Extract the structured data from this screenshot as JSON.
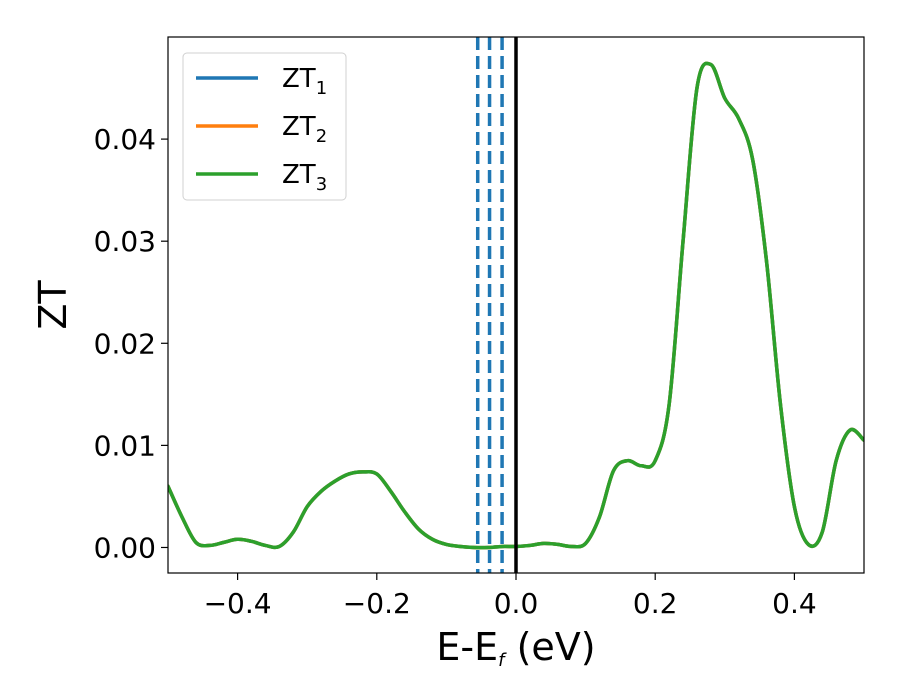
{
  "chart_data": {
    "type": "line",
    "xlabel": "E-E",
    "xlabel_sub": "f",
    "xlabel_unit": " (eV)",
    "ylabel": "ZT",
    "xlim": [
      -0.5,
      0.5
    ],
    "ylim": [
      -0.0025,
      0.05
    ],
    "xticks": [
      -0.4,
      -0.2,
      0.0,
      0.2,
      0.4
    ],
    "xtick_labels": [
      "−0.4",
      "−0.2",
      "0.0",
      "0.2",
      "0.4"
    ],
    "yticks": [
      0.0,
      0.01,
      0.02,
      0.03,
      0.04
    ],
    "ytick_labels": [
      "0.00",
      "0.01",
      "0.02",
      "0.03",
      "0.04"
    ],
    "grid": false,
    "legend": {
      "position": "top-left",
      "entries": [
        {
          "base": "ZT",
          "sub": "1",
          "color": "#1f77b4"
        },
        {
          "base": "ZT",
          "sub": "2",
          "color": "#ff7f0e"
        },
        {
          "base": "ZT",
          "sub": "3",
          "color": "#2ca02c"
        }
      ]
    },
    "x": [
      -0.5,
      -0.48,
      -0.46,
      -0.44,
      -0.42,
      -0.4,
      -0.38,
      -0.36,
      -0.34,
      -0.32,
      -0.3,
      -0.28,
      -0.26,
      -0.24,
      -0.22,
      -0.2,
      -0.18,
      -0.16,
      -0.14,
      -0.12,
      -0.1,
      -0.08,
      -0.06,
      -0.04,
      -0.02,
      0.0,
      0.02,
      0.04,
      0.06,
      0.08,
      0.1,
      0.12,
      0.14,
      0.16,
      0.18,
      0.2,
      0.22,
      0.24,
      0.26,
      0.28,
      0.3,
      0.32,
      0.34,
      0.36,
      0.38,
      0.4,
      0.42,
      0.44,
      0.46,
      0.48,
      0.5
    ],
    "series": [
      {
        "name": "ZT1",
        "color": "#1f77b4",
        "values": [
          0.006,
          0.003,
          0.0005,
          0.0002,
          0.0005,
          0.0008,
          0.0006,
          0.0002,
          0.0001,
          0.0015,
          0.004,
          0.0055,
          0.0065,
          0.0072,
          0.0074,
          0.0072,
          0.0055,
          0.0035,
          0.0018,
          0.0008,
          0.0003,
          0.0001,
          0.0,
          0.0,
          0.0001,
          0.0001,
          0.0002,
          0.0004,
          0.0003,
          0.0001,
          0.0004,
          0.003,
          0.0075,
          0.0085,
          0.008,
          0.0085,
          0.014,
          0.03,
          0.045,
          0.0473,
          0.044,
          0.042,
          0.038,
          0.028,
          0.014,
          0.004,
          0.0003,
          0.0015,
          0.0085,
          0.0115,
          0.0105
        ]
      },
      {
        "name": "ZT2",
        "color": "#ff7f0e",
        "values": [
          0.006,
          0.003,
          0.0005,
          0.0002,
          0.0005,
          0.0008,
          0.0006,
          0.0002,
          0.0001,
          0.0015,
          0.004,
          0.0055,
          0.0065,
          0.0072,
          0.0074,
          0.0072,
          0.0055,
          0.0035,
          0.0018,
          0.0008,
          0.0003,
          0.0001,
          0.0,
          0.0,
          0.0001,
          0.0001,
          0.0002,
          0.0004,
          0.0003,
          0.0001,
          0.0004,
          0.003,
          0.0075,
          0.0085,
          0.008,
          0.0085,
          0.014,
          0.03,
          0.045,
          0.0473,
          0.044,
          0.042,
          0.038,
          0.028,
          0.014,
          0.004,
          0.0003,
          0.0015,
          0.0085,
          0.0115,
          0.0105
        ]
      },
      {
        "name": "ZT3",
        "color": "#2ca02c",
        "values": [
          0.006,
          0.003,
          0.0005,
          0.0002,
          0.0005,
          0.0008,
          0.0006,
          0.0002,
          0.0001,
          0.0015,
          0.004,
          0.0055,
          0.0065,
          0.0072,
          0.0074,
          0.0072,
          0.0055,
          0.0035,
          0.0018,
          0.0008,
          0.0003,
          0.0001,
          0.0,
          0.0,
          0.0001,
          0.0001,
          0.0002,
          0.0004,
          0.0003,
          0.0001,
          0.0004,
          0.003,
          0.0075,
          0.0085,
          0.008,
          0.0085,
          0.014,
          0.03,
          0.045,
          0.0473,
          0.044,
          0.042,
          0.038,
          0.028,
          0.014,
          0.004,
          0.0003,
          0.0015,
          0.0085,
          0.0115,
          0.0105
        ]
      }
    ],
    "vlines": [
      {
        "x": -0.055,
        "style": "dashed",
        "color": "#1f77b4"
      },
      {
        "x": -0.038,
        "style": "dashed",
        "color": "#1f77b4"
      },
      {
        "x": -0.02,
        "style": "dashed",
        "color": "#1f77b4"
      },
      {
        "x": 0.0,
        "style": "solid",
        "color": "#000000"
      }
    ]
  }
}
